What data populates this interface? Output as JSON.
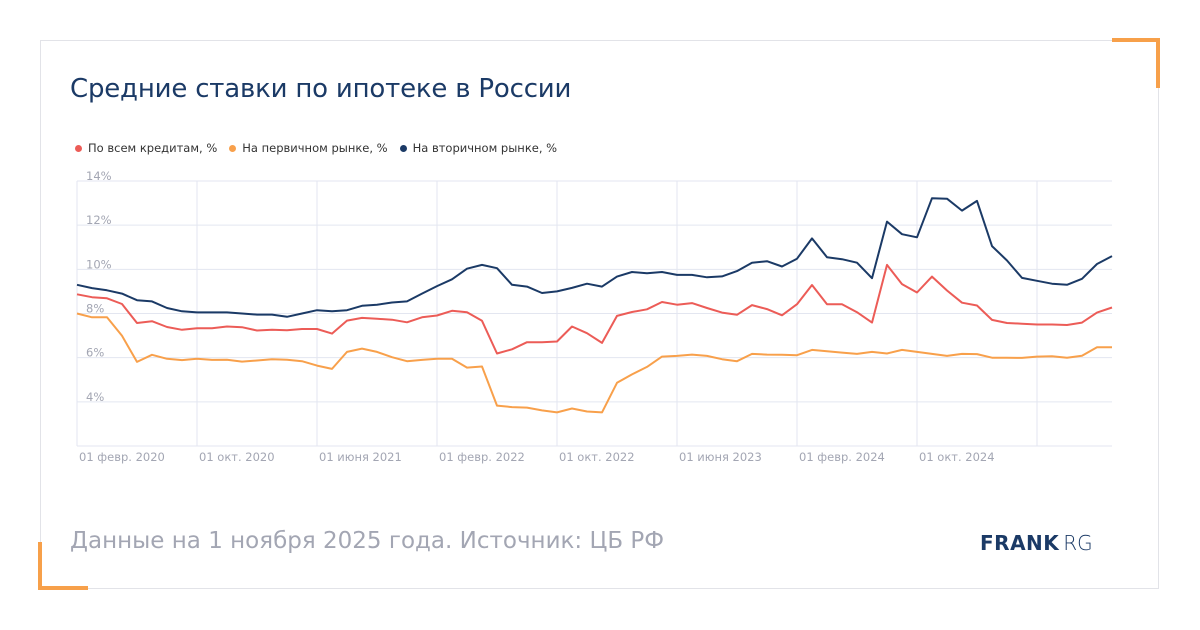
{
  "title": "Средние ставки по ипотеке в России",
  "footer": "Данные на 1 ноября 2025 года. Источник: ЦБ РФ",
  "logo": {
    "bold": "FRANK",
    "light": "RG"
  },
  "colors": {
    "all": "#ec5c57",
    "primary": "#f8a04b",
    "secondary": "#1b3a66",
    "grid": "#e3e6f0",
    "tick": "#a3a6b3",
    "accent": "#f7a04a"
  },
  "chart_data": {
    "type": "line",
    "title": "Средние ставки по ипотеке в России",
    "xlabel": "",
    "ylabel": "",
    "ylim": [
      2,
      14
    ],
    "y_ticks": [
      4,
      6,
      8,
      10,
      12,
      14
    ],
    "y_tick_labels": [
      "4%",
      "6%",
      "8%",
      "10%",
      "12%",
      "14%"
    ],
    "x_start": "2020-02",
    "x_step": "month",
    "x_tick_labels": [
      "01 февр. 2020",
      "01 окт. 2020",
      "01 июня 2021",
      "01 февр. 2022",
      "01 окт. 2022",
      "01 июня 2023",
      "01 февр. 2024",
      "01 окт. 2024"
    ],
    "x_tick_every_months": 8,
    "grid": true,
    "legend_placement": "top-left",
    "series": [
      {
        "name": "По всем кредитам, %",
        "color": "#ec5c57",
        "values": [
          8.87,
          8.74,
          8.69,
          8.43,
          7.57,
          7.65,
          7.39,
          7.26,
          7.33,
          7.33,
          7.41,
          7.38,
          7.23,
          7.26,
          7.24,
          7.3,
          7.3,
          7.09,
          7.68,
          7.8,
          7.76,
          7.72,
          7.6,
          7.83,
          7.91,
          8.12,
          8.06,
          7.67,
          6.19,
          6.38,
          6.7,
          6.7,
          6.73,
          7.41,
          7.11,
          6.67,
          7.89,
          8.07,
          8.19,
          8.52,
          8.4,
          8.47,
          8.25,
          8.04,
          7.94,
          8.38,
          8.2,
          7.92,
          8.42,
          9.29,
          8.42,
          8.42,
          8.06,
          7.59,
          10.2,
          9.33,
          8.95,
          9.67,
          9.04,
          8.49,
          8.36,
          7.71,
          7.57,
          7.54,
          7.5,
          7.5,
          7.48,
          7.59,
          8.04,
          8.27
        ]
      },
      {
        "name": "На первичном рынке, %",
        "color": "#f8a04b",
        "values": [
          8.0,
          7.83,
          7.83,
          6.99,
          5.81,
          6.13,
          5.95,
          5.89,
          5.95,
          5.9,
          5.91,
          5.82,
          5.87,
          5.93,
          5.91,
          5.84,
          5.64,
          5.49,
          6.26,
          6.41,
          6.26,
          6.02,
          5.84,
          5.9,
          5.95,
          5.95,
          5.55,
          5.6,
          3.83,
          3.76,
          3.74,
          3.61,
          3.52,
          3.7,
          3.56,
          3.52,
          4.86,
          5.24,
          5.58,
          6.05,
          6.08,
          6.14,
          6.08,
          5.93,
          5.84,
          6.17,
          6.14,
          6.13,
          6.11,
          6.35,
          6.29,
          6.23,
          6.17,
          6.26,
          6.19,
          6.35,
          6.26,
          6.17,
          6.08,
          6.17,
          6.16,
          6.0,
          6.0,
          5.99,
          6.05,
          6.06,
          6.0,
          6.09,
          6.47,
          6.47
        ]
      },
      {
        "name": "На вторичном рынке, %",
        "color": "#1b3a66",
        "values": [
          9.3,
          9.15,
          9.05,
          8.9,
          8.6,
          8.55,
          8.25,
          8.1,
          8.05,
          8.05,
          8.05,
          8.0,
          7.95,
          7.95,
          7.85,
          8.0,
          8.15,
          8.1,
          8.15,
          8.35,
          8.4,
          8.5,
          8.55,
          8.9,
          9.24,
          9.55,
          10.03,
          10.2,
          10.05,
          9.3,
          9.22,
          8.93,
          9.0,
          9.16,
          9.35,
          9.22,
          9.67,
          9.88,
          9.82,
          9.88,
          9.75,
          9.75,
          9.64,
          9.68,
          9.92,
          10.3,
          10.37,
          10.13,
          10.48,
          11.4,
          10.55,
          10.46,
          10.3,
          9.6,
          12.16,
          11.59,
          11.45,
          13.22,
          13.2,
          12.66,
          13.1,
          11.05,
          10.4,
          9.61,
          9.48,
          9.35,
          9.3,
          9.57,
          10.24,
          10.6
        ]
      }
    ]
  }
}
